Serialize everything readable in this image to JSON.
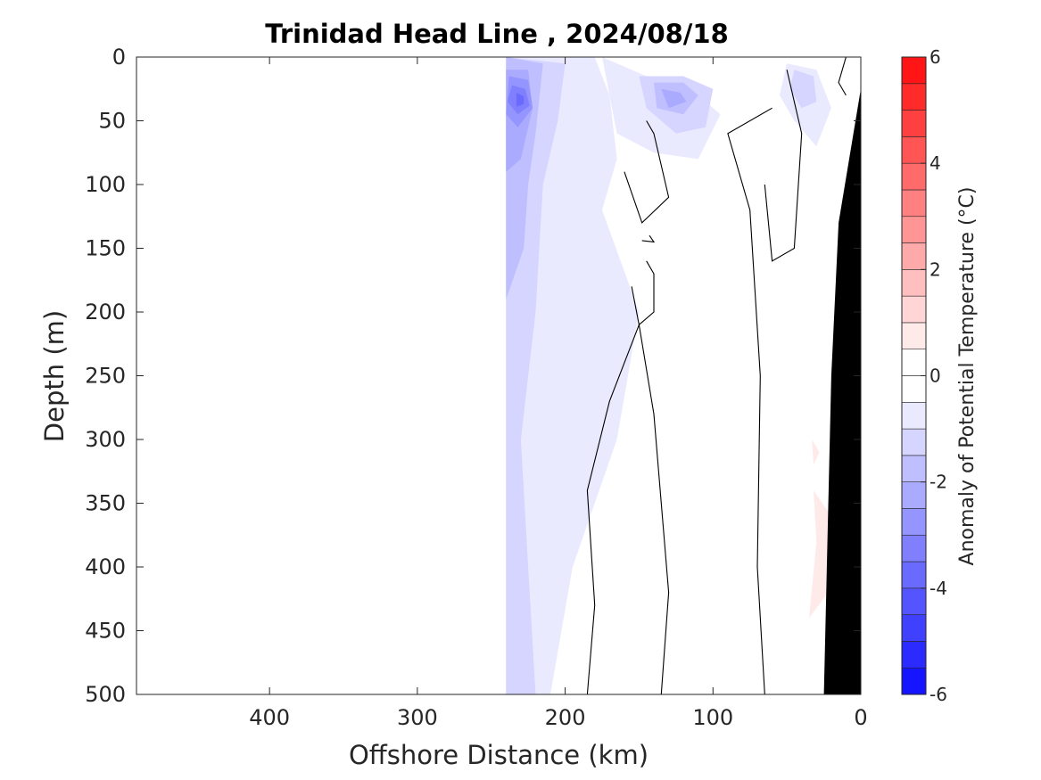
{
  "chart_data": {
    "type": "contour",
    "title": "Trinidad Head Line , 2024/08/18",
    "xlabel": "Offshore Distance (km)",
    "ylabel": "Depth (m)",
    "x_axis": {
      "range": [
        490,
        0
      ],
      "reversed": true,
      "ticks": [
        400,
        300,
        200,
        100,
        0
      ]
    },
    "y_axis": {
      "range": [
        0,
        500
      ],
      "reversed": true,
      "ticks": [
        0,
        50,
        100,
        150,
        200,
        250,
        300,
        350,
        400,
        450,
        500
      ]
    },
    "colorbar": {
      "label": "Anomaly of Potential Temperature (°C)",
      "range": [
        -6,
        6
      ],
      "step": 0.5,
      "ticks": [
        6,
        4,
        2,
        0,
        -2,
        -4,
        -6
      ],
      "colormap": {
        "negative": "#0000ff",
        "zero": "#ffffff",
        "positive": "#ff0000"
      }
    },
    "data_extent_km": [
      240,
      0
    ],
    "bathymetry_color": "#000000",
    "zero_contour_color": "#000000",
    "filled_regions": [
      {
        "anomaly": -0.5,
        "polygon": [
          [
            240,
            0
          ],
          [
            180,
            0
          ],
          [
            170,
            30
          ],
          [
            165,
            80
          ],
          [
            175,
            120
          ],
          [
            150,
            200
          ],
          [
            165,
            300
          ],
          [
            195,
            400
          ],
          [
            210,
            500
          ],
          [
            240,
            500
          ]
        ]
      },
      {
        "anomaly": -0.5,
        "polygon": [
          [
            175,
            0
          ],
          [
            135,
            20
          ],
          [
            110,
            30
          ],
          [
            95,
            45
          ],
          [
            110,
            80
          ],
          [
            140,
            75
          ],
          [
            165,
            60
          ]
        ]
      },
      {
        "anomaly": -0.5,
        "polygon": [
          [
            50,
            5
          ],
          [
            30,
            10
          ],
          [
            20,
            40
          ],
          [
            30,
            70
          ],
          [
            45,
            50
          ],
          [
            55,
            30
          ]
        ]
      },
      {
        "anomaly": -1.0,
        "polygon": [
          [
            240,
            0
          ],
          [
            200,
            5
          ],
          [
            205,
            50
          ],
          [
            215,
            100
          ],
          [
            220,
            200
          ],
          [
            230,
            300
          ],
          [
            225,
            400
          ],
          [
            220,
            500
          ],
          [
            240,
            500
          ]
        ]
      },
      {
        "anomaly": -1.0,
        "polygon": [
          [
            150,
            15
          ],
          [
            120,
            15
          ],
          [
            100,
            25
          ],
          [
            105,
            55
          ],
          [
            125,
            60
          ],
          [
            145,
            40
          ]
        ]
      },
      {
        "anomaly": -1.0,
        "polygon": [
          [
            45,
            10
          ],
          [
            32,
            15
          ],
          [
            30,
            35
          ],
          [
            40,
            40
          ],
          [
            48,
            25
          ]
        ]
      },
      {
        "anomaly": -1.5,
        "polygon": [
          [
            240,
            0
          ],
          [
            215,
            5
          ],
          [
            220,
            60
          ],
          [
            225,
            100
          ],
          [
            228,
            150
          ],
          [
            240,
            190
          ]
        ]
      },
      {
        "anomaly": -1.5,
        "polygon": [
          [
            140,
            20
          ],
          [
            120,
            20
          ],
          [
            110,
            30
          ],
          [
            120,
            45
          ],
          [
            138,
            40
          ]
        ]
      },
      {
        "anomaly": -2.0,
        "polygon": [
          [
            240,
            10
          ],
          [
            225,
            10
          ],
          [
            222,
            40
          ],
          [
            230,
            80
          ],
          [
            240,
            90
          ]
        ]
      },
      {
        "anomaly": -2.0,
        "polygon": [
          [
            135,
            25
          ],
          [
            122,
            28
          ],
          [
            118,
            35
          ],
          [
            130,
            40
          ]
        ]
      },
      {
        "anomaly": -2.5,
        "polygon": [
          [
            238,
            15
          ],
          [
            225,
            18
          ],
          [
            222,
            40
          ],
          [
            232,
            55
          ],
          [
            240,
            45
          ]
        ]
      },
      {
        "anomaly": -3.0,
        "polygon": [
          [
            236,
            22
          ],
          [
            227,
            25
          ],
          [
            224,
            38
          ],
          [
            232,
            45
          ],
          [
            239,
            35
          ]
        ]
      },
      {
        "anomaly": -3.5,
        "polygon": [
          [
            233,
            28
          ],
          [
            228,
            31
          ],
          [
            228,
            37
          ],
          [
            233,
            39
          ]
        ]
      },
      {
        "anomaly": 0.5,
        "polygon": [
          [
            33,
            300
          ],
          [
            28,
            310
          ],
          [
            32,
            320
          ]
        ]
      },
      {
        "anomaly": 0.5,
        "polygon": [
          [
            32,
            340
          ],
          [
            20,
            360
          ],
          [
            22,
            420
          ],
          [
            35,
            440
          ],
          [
            30,
            380
          ]
        ]
      }
    ],
    "zero_contours": [
      [
        [
          185,
          500
        ],
        [
          180,
          430
        ],
        [
          185,
          340
        ],
        [
          170,
          270
        ],
        [
          150,
          210
        ],
        [
          140,
          280
        ],
        [
          130,
          420
        ],
        [
          135,
          500
        ]
      ],
      [
        [
          145,
          50
        ],
        [
          140,
          60
        ],
        [
          130,
          110
        ],
        [
          148,
          130
        ],
        [
          160,
          90
        ]
      ],
      [
        [
          143,
          140
        ],
        [
          140,
          145
        ],
        [
          148,
          144
        ]
      ],
      [
        [
          145,
          160
        ],
        [
          140,
          170
        ],
        [
          140,
          200
        ],
        [
          150,
          210
        ],
        [
          155,
          180
        ]
      ],
      [
        [
          65,
          500
        ],
        [
          70,
          400
        ],
        [
          68,
          250
        ],
        [
          75,
          120
        ],
        [
          90,
          60
        ],
        [
          60,
          40
        ]
      ],
      [
        [
          50,
          10
        ],
        [
          40,
          60
        ],
        [
          45,
          150
        ],
        [
          60,
          160
        ],
        [
          65,
          100
        ]
      ],
      [
        [
          10,
          0
        ],
        [
          15,
          20
        ],
        [
          10,
          30
        ]
      ]
    ],
    "bathymetry": [
      [
        0,
        25
      ],
      [
        0,
        500
      ],
      [
        25,
        500
      ],
      [
        20,
        250
      ],
      [
        15,
        130
      ],
      [
        5,
        60
      ]
    ]
  }
}
